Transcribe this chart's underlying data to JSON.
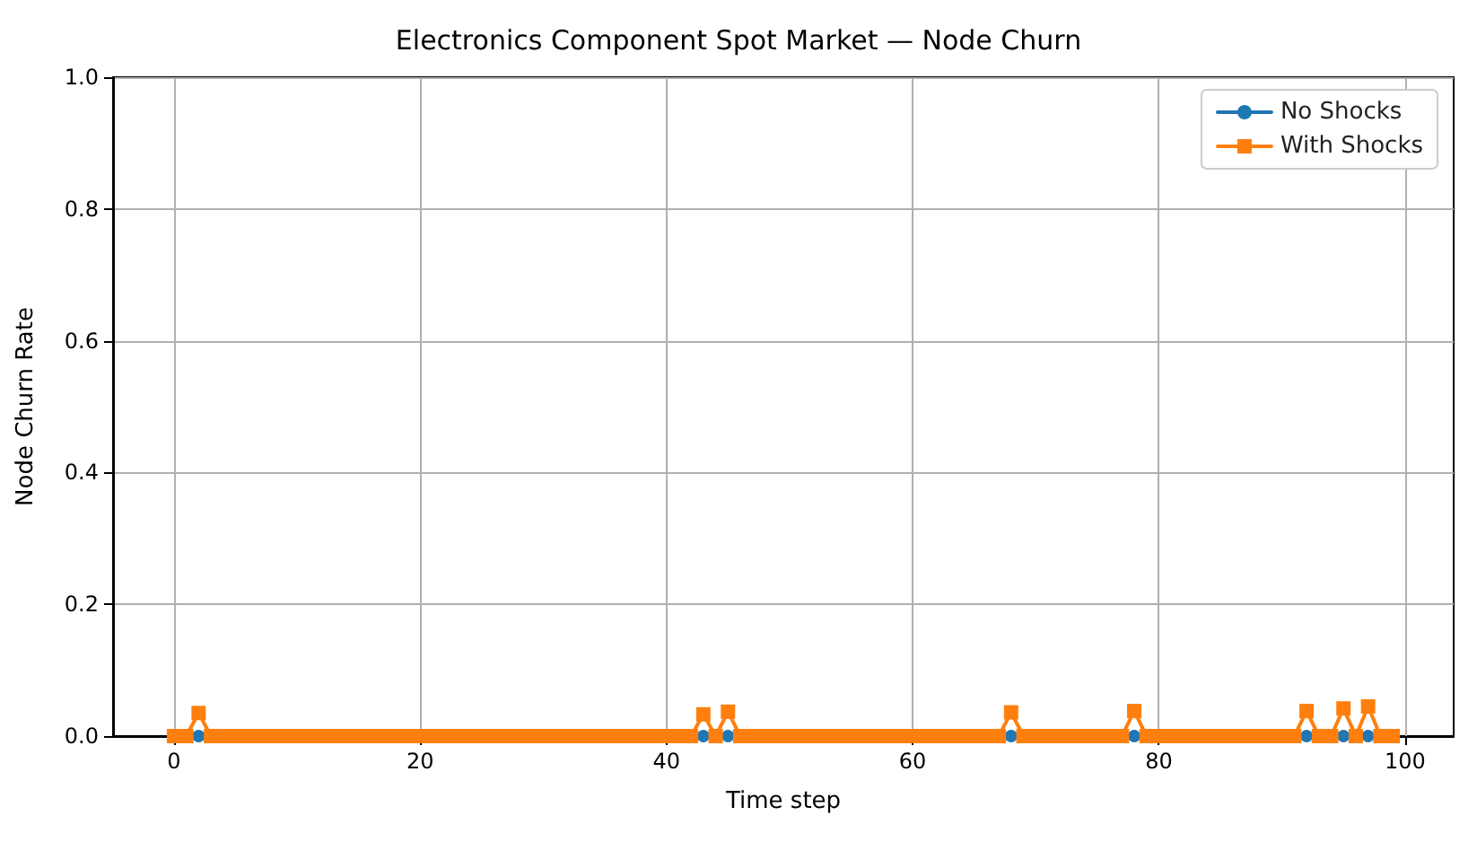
{
  "chart_data": {
    "type": "line",
    "title": "Electronics Component Spot Market — Node Churn",
    "xlabel": "Time step",
    "ylabel": "Node Churn Rate",
    "x": [
      0,
      1,
      2,
      3,
      4,
      5,
      6,
      7,
      8,
      9,
      10,
      11,
      12,
      13,
      14,
      15,
      16,
      17,
      18,
      19,
      20,
      21,
      22,
      23,
      24,
      25,
      26,
      27,
      28,
      29,
      30,
      31,
      32,
      33,
      34,
      35,
      36,
      37,
      38,
      39,
      40,
      41,
      42,
      43,
      44,
      45,
      46,
      47,
      48,
      49,
      50,
      51,
      52,
      53,
      54,
      55,
      56,
      57,
      58,
      59,
      60,
      61,
      62,
      63,
      64,
      65,
      66,
      67,
      68,
      69,
      70,
      71,
      72,
      73,
      74,
      75,
      76,
      77,
      78,
      79,
      80,
      81,
      82,
      83,
      84,
      85,
      86,
      87,
      88,
      89,
      90,
      91,
      92,
      93,
      94,
      95,
      96,
      97,
      98,
      99
    ],
    "series": [
      {
        "name": "No Shocks",
        "color": "#1f77b4",
        "marker": "circle",
        "values": [
          null,
          null,
          0,
          null,
          null,
          null,
          null,
          null,
          null,
          null,
          null,
          null,
          null,
          null,
          null,
          null,
          null,
          null,
          null,
          null,
          null,
          null,
          null,
          null,
          null,
          null,
          null,
          null,
          null,
          null,
          null,
          null,
          null,
          null,
          null,
          null,
          null,
          null,
          null,
          null,
          null,
          null,
          null,
          0,
          null,
          0,
          null,
          null,
          null,
          null,
          null,
          null,
          null,
          null,
          null,
          null,
          null,
          null,
          null,
          null,
          null,
          null,
          null,
          null,
          null,
          null,
          null,
          null,
          0,
          null,
          null,
          null,
          null,
          null,
          null,
          null,
          null,
          null,
          0,
          null,
          null,
          null,
          null,
          null,
          null,
          null,
          null,
          null,
          null,
          null,
          null,
          null,
          0,
          null,
          null,
          0,
          null,
          0,
          null,
          null
        ]
      },
      {
        "name": "With Shocks",
        "color": "#ff7f0e",
        "marker": "square",
        "values": [
          0,
          0,
          0.035,
          0,
          0,
          0,
          0,
          0,
          0,
          0,
          0,
          0,
          0,
          0,
          0,
          0,
          0,
          0,
          0,
          0,
          0,
          0,
          0,
          0,
          0,
          0,
          0,
          0,
          0,
          0,
          0,
          0,
          0,
          0,
          0,
          0,
          0,
          0,
          0,
          0,
          0,
          0,
          0,
          0.033,
          0,
          0.037,
          0,
          0,
          0,
          0,
          0,
          0,
          0,
          0,
          0,
          0,
          0,
          0,
          0,
          0,
          0,
          0,
          0,
          0,
          0,
          0,
          0,
          0,
          0.036,
          0,
          0,
          0,
          0,
          0,
          0,
          0,
          0,
          0,
          0.038,
          0,
          0,
          0,
          0,
          0,
          0,
          0,
          0,
          0,
          0,
          0,
          0,
          0,
          0.038,
          0,
          0,
          0.042,
          0,
          0.045,
          0,
          0
        ]
      }
    ],
    "xlim": [
      -4.95,
      103.95
    ],
    "xticks": [
      0,
      20,
      40,
      60,
      80,
      100
    ],
    "ylim": [
      0,
      1
    ],
    "yticks": [
      {
        "value": 0,
        "label": "0.0"
      },
      0.2,
      0.4,
      0.6,
      0.8,
      {
        "value": 1,
        "label": "1.0"
      }
    ],
    "grid": true,
    "legend": "top right",
    "line_style": "solid"
  }
}
